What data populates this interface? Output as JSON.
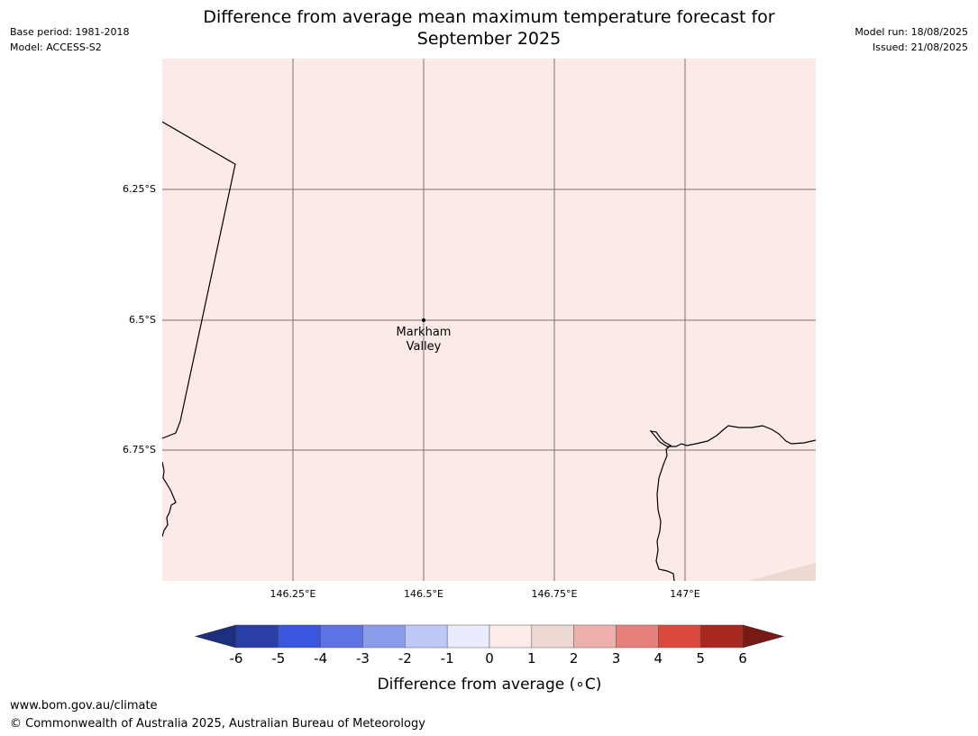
{
  "header": {
    "base_period": "Base period: 1981-2018",
    "model": "Model: ACCESS-S2",
    "model_run": "Model run: 18/08/2025",
    "issued": "Issued: 21/08/2025"
  },
  "title": {
    "line1": "Difference from average mean maximum temperature forecast for",
    "line2": "September 2025"
  },
  "map": {
    "background_color": "#fbeae7",
    "corner_color": "#eed8d2",
    "lon_ticks": [
      "146.25°E",
      "146.5°E",
      "146.75°E",
      "147°E"
    ],
    "lat_ticks": [
      "6.25°S",
      "6.5°S",
      "6.75°S"
    ],
    "place": {
      "name_line1": "Markham",
      "name_line2": "Valley"
    }
  },
  "colorbar": {
    "label": "Difference from average (∘C)",
    "tick_labels": [
      "-6",
      "-5",
      "-4",
      "-3",
      "-2",
      "-1",
      "0",
      "1",
      "2",
      "3",
      "4",
      "5",
      "6"
    ],
    "low_extend_color": "#1f2f80",
    "high_extend_color": "#7a1a15",
    "colors": [
      "#2a3eaa",
      "#3a55de",
      "#5d73e3",
      "#8a9bec",
      "#c0c8f5",
      "#eaecfd",
      "#fcebe8",
      "#edd8d4",
      "#eeb0ab",
      "#e6807a",
      "#dc4a3d",
      "#a82820"
    ]
  },
  "footer": {
    "url": "www.bom.gov.au/climate",
    "copyright": "© Commonwealth of Australia 2025, Australian Bureau of Meteorology"
  }
}
